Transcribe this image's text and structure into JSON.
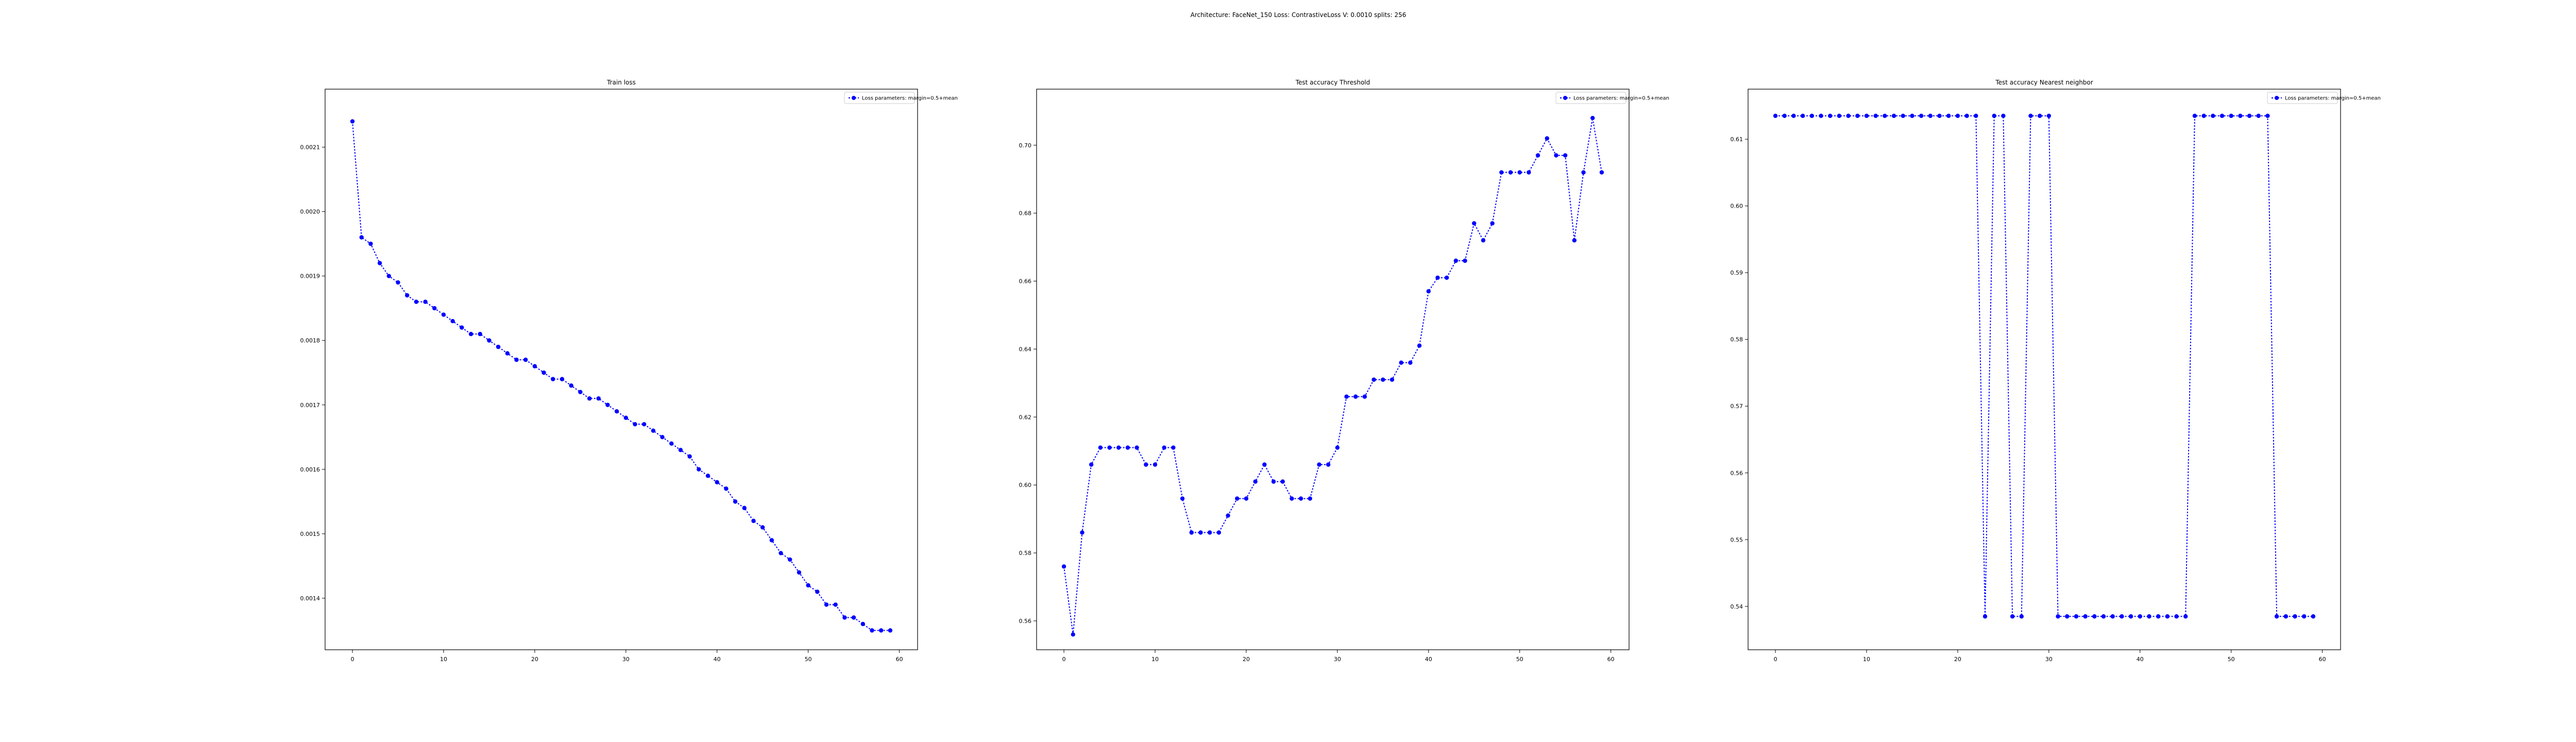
{
  "figure": {
    "suptitle": "Architecture: FaceNet_150 Loss: ContrastiveLoss V: 0.0010 splits: 256"
  },
  "colors": {
    "series": "#0000ff",
    "axes": "#000000",
    "background": "#ffffff"
  },
  "chart_data": [
    {
      "type": "line",
      "title": "Train loss",
      "xlabel": "",
      "ylabel": "",
      "legend": {
        "placement": "top-right",
        "entries": [
          "Loss parameters: margin=0.5+mean"
        ]
      },
      "grid": false,
      "xlim": [
        -3,
        62
      ],
      "ylim": [
        0.00132,
        0.00219
      ],
      "xticks": [
        0,
        10,
        20,
        30,
        40,
        50,
        60
      ],
      "yticks": [
        0.0014,
        0.0015,
        0.0016,
        0.0017,
        0.0018,
        0.0019,
        0.002,
        0.0021
      ],
      "series": [
        {
          "name": "Loss parameters: margin=0.5+mean",
          "x": [
            0,
            1,
            2,
            3,
            4,
            5,
            6,
            7,
            8,
            9,
            10,
            11,
            12,
            13,
            14,
            15,
            16,
            17,
            18,
            19,
            20,
            21,
            22,
            23,
            24,
            25,
            26,
            27,
            28,
            29,
            30,
            31,
            32,
            33,
            34,
            35,
            36,
            37,
            38,
            39,
            40,
            41,
            42,
            43,
            44,
            45,
            46,
            47,
            48,
            49,
            50,
            51,
            52,
            53,
            54,
            55,
            56,
            57,
            58,
            59
          ],
          "y": [
            0.00214,
            0.00196,
            0.00195,
            0.00192,
            0.0019,
            0.00189,
            0.00187,
            0.00186,
            0.00186,
            0.00185,
            0.00184,
            0.00183,
            0.00182,
            0.00181,
            0.00181,
            0.0018,
            0.00179,
            0.00178,
            0.00177,
            0.00177,
            0.00176,
            0.00175,
            0.00174,
            0.00174,
            0.00173,
            0.00172,
            0.00171,
            0.00171,
            0.0017,
            0.00169,
            0.00168,
            0.00167,
            0.00167,
            0.00166,
            0.00165,
            0.00164,
            0.00163,
            0.00162,
            0.0016,
            0.00159,
            0.00158,
            0.00157,
            0.00155,
            0.00154,
            0.00152,
            0.00151,
            0.00149,
            0.00147,
            0.00146,
            0.00144,
            0.00142,
            0.00141,
            0.00139,
            0.00139,
            0.00137,
            0.00137,
            0.00136,
            0.00135,
            0.00135,
            0.00135
          ]
        }
      ]
    },
    {
      "type": "line",
      "title": "Test accuracy Threshold",
      "xlabel": "",
      "ylabel": "",
      "legend": {
        "placement": "top-right",
        "entries": [
          "Loss parameters: margin=0.5+mean"
        ]
      },
      "grid": false,
      "xlim": [
        -3,
        62
      ],
      "ylim": [
        0.5515,
        0.7165
      ],
      "xticks": [
        0,
        10,
        20,
        30,
        40,
        50,
        60
      ],
      "yticks": [
        0.56,
        0.58,
        0.6,
        0.62,
        0.64,
        0.66,
        0.68,
        0.7
      ],
      "series": [
        {
          "name": "Loss parameters: margin=0.5+mean",
          "x": [
            0,
            1,
            2,
            3,
            4,
            5,
            6,
            7,
            8,
            9,
            10,
            11,
            12,
            13,
            14,
            15,
            16,
            17,
            18,
            19,
            20,
            21,
            22,
            23,
            24,
            25,
            26,
            27,
            28,
            29,
            30,
            31,
            32,
            33,
            34,
            35,
            36,
            37,
            38,
            39,
            40,
            41,
            42,
            43,
            44,
            45,
            46,
            47,
            48,
            49,
            50,
            51,
            52,
            53,
            54,
            55,
            56,
            57,
            58,
            59
          ],
          "y": [
            0.576,
            0.556,
            0.586,
            0.606,
            0.611,
            0.611,
            0.611,
            0.611,
            0.611,
            0.606,
            0.606,
            0.611,
            0.611,
            0.596,
            0.586,
            0.586,
            0.586,
            0.586,
            0.591,
            0.596,
            0.596,
            0.601,
            0.606,
            0.601,
            0.601,
            0.596,
            0.596,
            0.596,
            0.606,
            0.606,
            0.611,
            0.626,
            0.626,
            0.626,
            0.631,
            0.631,
            0.631,
            0.636,
            0.636,
            0.641,
            0.657,
            0.661,
            0.661,
            0.666,
            0.666,
            0.677,
            0.672,
            0.677,
            0.692,
            0.692,
            0.692,
            0.692,
            0.697,
            0.702,
            0.697,
            0.697,
            0.672,
            0.692,
            0.708,
            0.692
          ]
        }
      ]
    },
    {
      "type": "line",
      "title": "Test accuracy Nearest neighbor",
      "xlabel": "",
      "ylabel": "",
      "legend": {
        "placement": "top-right",
        "entries": [
          "Loss parameters: margin=0.5+mean"
        ]
      },
      "grid": false,
      "xlim": [
        -3,
        62
      ],
      "ylim": [
        0.5335,
        0.6175
      ],
      "xticks": [
        0,
        10,
        20,
        30,
        40,
        50,
        60
      ],
      "yticks": [
        0.54,
        0.55,
        0.56,
        0.57,
        0.58,
        0.59,
        0.6,
        0.61
      ],
      "series": [
        {
          "name": "Loss parameters: margin=0.5+mean",
          "x": [
            0,
            1,
            2,
            3,
            4,
            5,
            6,
            7,
            8,
            9,
            10,
            11,
            12,
            13,
            14,
            15,
            16,
            17,
            18,
            19,
            20,
            21,
            22,
            23,
            24,
            25,
            26,
            27,
            28,
            29,
            30,
            31,
            32,
            33,
            34,
            35,
            36,
            37,
            38,
            39,
            40,
            41,
            42,
            43,
            44,
            45,
            46,
            47,
            48,
            49,
            50,
            51,
            52,
            53,
            54,
            55,
            56,
            57,
            58,
            59
          ],
          "y": [
            0.6135,
            0.6135,
            0.6135,
            0.6135,
            0.6135,
            0.6135,
            0.6135,
            0.6135,
            0.6135,
            0.6135,
            0.6135,
            0.6135,
            0.6135,
            0.6135,
            0.6135,
            0.6135,
            0.6135,
            0.6135,
            0.6135,
            0.6135,
            0.6135,
            0.6135,
            0.6135,
            0.5385,
            0.6135,
            0.6135,
            0.5385,
            0.5385,
            0.6135,
            0.6135,
            0.6135,
            0.5385,
            0.5385,
            0.5385,
            0.5385,
            0.5385,
            0.5385,
            0.5385,
            0.5385,
            0.5385,
            0.5385,
            0.5385,
            0.5385,
            0.5385,
            0.5385,
            0.5385,
            0.6135,
            0.6135,
            0.6135,
            0.6135,
            0.6135,
            0.6135,
            0.6135,
            0.6135,
            0.6135,
            0.5385,
            0.5385,
            0.5385,
            0.5385,
            0.5385
          ]
        }
      ]
    }
  ]
}
